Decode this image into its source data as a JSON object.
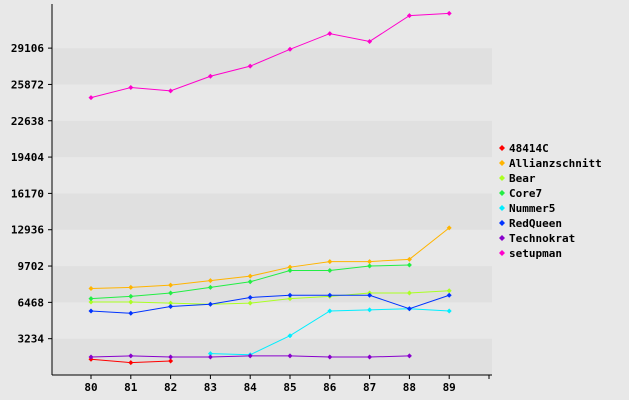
{
  "chart_data": {
    "type": "line",
    "title": "",
    "xlabel": "",
    "ylabel": "",
    "categories": [
      "80",
      "81",
      "82",
      "83",
      "84",
      "85",
      "86",
      "87",
      "88",
      "89"
    ],
    "y_ticks": [
      3234,
      6468,
      9702,
      12936,
      16170,
      19404,
      22638,
      25872,
      29106
    ],
    "ylim": [
      0,
      32500
    ],
    "grid": "horizontal bands",
    "legend_position": "right",
    "series": [
      {
        "name": "48414C",
        "color": "#ff0000",
        "values": [
          1400,
          1100,
          1250,
          null,
          null,
          null,
          null,
          null,
          null,
          null
        ]
      },
      {
        "name": "Allianzschnitt",
        "color": "#ffb400",
        "values": [
          7700,
          7800,
          8000,
          8400,
          8800,
          9600,
          10100,
          10100,
          10300,
          13100
        ]
      },
      {
        "name": "Bear",
        "color": "#aaff22",
        "values": [
          6500,
          6500,
          6400,
          6300,
          6400,
          6800,
          7000,
          7300,
          7300,
          7500
        ]
      },
      {
        "name": "Core7",
        "color": "#22ee44",
        "values": [
          6800,
          7000,
          7300,
          7800,
          8300,
          9300,
          9300,
          9700,
          9800,
          null
        ]
      },
      {
        "name": "Nummer5",
        "color": "#00eeff",
        "values": [
          null,
          null,
          null,
          1900,
          1800,
          3500,
          5700,
          5800,
          5900,
          5700
        ]
      },
      {
        "name": "RedQueen",
        "color": "#0033ff",
        "values": [
          5700,
          5500,
          6100,
          6300,
          6900,
          7100,
          7100,
          7100,
          5900,
          7100
        ]
      },
      {
        "name": "Technokrat",
        "color": "#8800cc",
        "values": [
          1600,
          1700,
          1600,
          1600,
          1700,
          1700,
          1600,
          1600,
          1700,
          null
        ]
      },
      {
        "name": "setupman",
        "color": "#ff00cc",
        "values": [
          24700,
          25600,
          25300,
          26600,
          27500,
          29000,
          30400,
          29700,
          32000,
          32200
        ]
      }
    ]
  }
}
